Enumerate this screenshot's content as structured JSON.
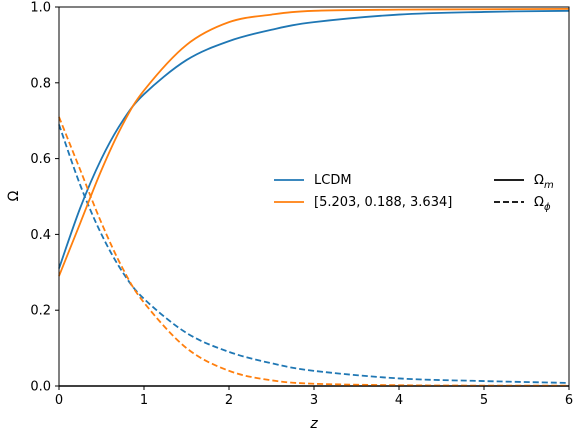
{
  "chart_data": {
    "type": "line",
    "xlabel": "z",
    "ylabel": "Ω",
    "xlim": [
      0,
      6
    ],
    "ylim": [
      0,
      1.0
    ],
    "xticks": [
      "0",
      "1",
      "2",
      "3",
      "4",
      "5",
      "6"
    ],
    "yticks": [
      "0.0",
      "0.2",
      "0.4",
      "0.6",
      "0.8",
      "1.0"
    ],
    "grid": false,
    "series": [
      {
        "name": "LCDM",
        "color": "#1f77b4",
        "omega_m": {
          "x": [
            0,
            0.25,
            0.5,
            0.75,
            1.0,
            1.5,
            2.0,
            2.5,
            3.0,
            4.0,
            5.0,
            6.0
          ],
          "y": [
            0.31,
            0.47,
            0.6,
            0.7,
            0.77,
            0.86,
            0.91,
            0.94,
            0.96,
            0.98,
            0.987,
            0.99
          ]
        },
        "omega_phi": {
          "x": [
            0,
            0.25,
            0.5,
            0.75,
            1.0,
            1.5,
            2.0,
            2.5,
            3.0,
            4.0,
            5.0,
            6.0
          ],
          "y": [
            0.69,
            0.53,
            0.4,
            0.3,
            0.23,
            0.14,
            0.09,
            0.06,
            0.04,
            0.02,
            0.013,
            0.008
          ]
        }
      },
      {
        "name": "[5.203, 0.188, 3.634]",
        "color": "#ff7f0e",
        "omega_m": {
          "x": [
            0,
            0.25,
            0.5,
            0.75,
            1.0,
            1.5,
            2.0,
            2.5,
            3.0,
            4.0,
            5.0,
            6.0
          ],
          "y": [
            0.29,
            0.43,
            0.57,
            0.69,
            0.78,
            0.9,
            0.96,
            0.98,
            0.99,
            0.993,
            0.994,
            0.995
          ]
        },
        "omega_phi": {
          "x": [
            0,
            0.25,
            0.5,
            0.75,
            1.0,
            1.5,
            2.0,
            2.5,
            3.0,
            4.0,
            5.0,
            6.0
          ],
          "y": [
            0.71,
            0.57,
            0.43,
            0.31,
            0.22,
            0.1,
            0.04,
            0.015,
            0.006,
            0.002,
            0.001,
            0.001
          ]
        }
      }
    ],
    "legend_models": [
      {
        "label": "LCDM",
        "color": "#1f77b4"
      },
      {
        "label": "[5.203, 0.188, 3.634]",
        "color": "#ff7f0e"
      }
    ],
    "legend_styles": [
      {
        "label": "Ωm",
        "symbol": "Ω",
        "sub": "m",
        "dash": "solid"
      },
      {
        "label": "Ωϕ",
        "symbol": "Ω",
        "sub": "ϕ",
        "dash": "dashed"
      }
    ],
    "legend_placement": "center-right",
    "baseline": {
      "y": 0.0,
      "color": "#000000"
    }
  }
}
